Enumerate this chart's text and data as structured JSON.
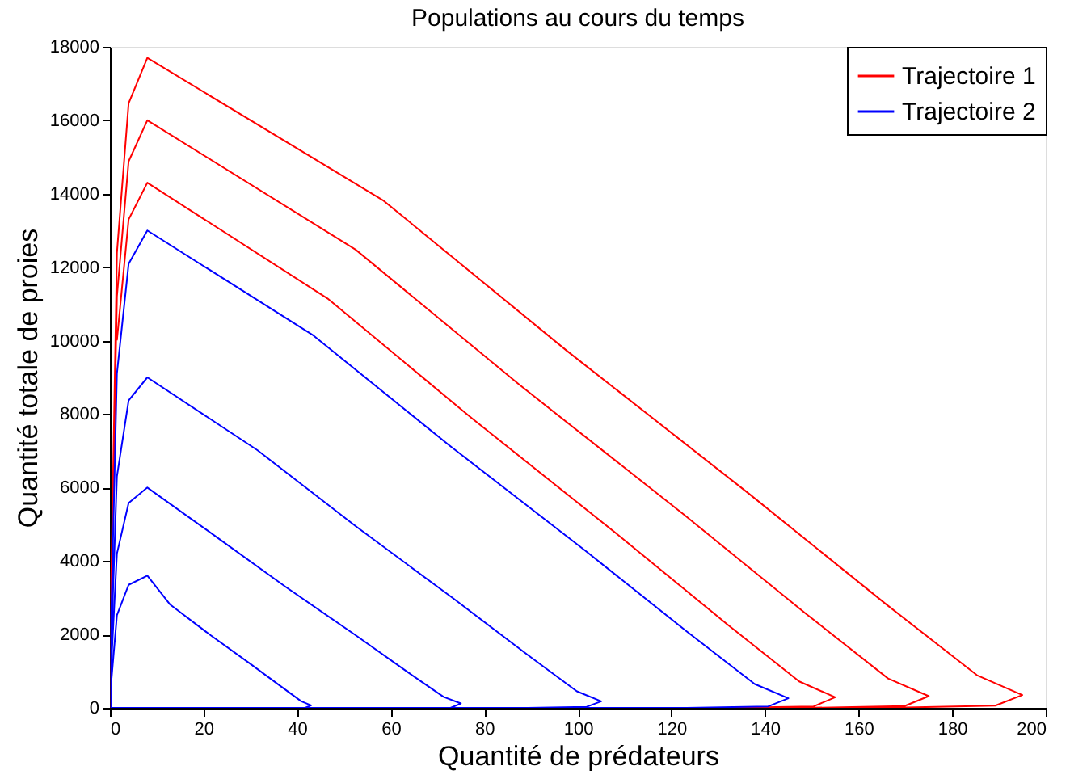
{
  "chart_data": {
    "type": "line",
    "title": "Populations au cours du temps",
    "xlabel": "Quantité de prédateurs",
    "ylabel": "Quantité totale de proies",
    "xlim": [
      0,
      200
    ],
    "xticks": [
      0,
      20,
      40,
      60,
      80,
      100,
      120,
      140,
      160,
      180,
      200
    ],
    "ylim": [
      0,
      18000
    ],
    "yticks": [
      0,
      2000,
      4000,
      6000,
      8000,
      10000,
      12000,
      14000,
      16000,
      18000
    ],
    "grid": false,
    "legend": "top right",
    "marker": "none",
    "line_style": "solid",
    "series": [
      {
        "name": "Trajectoire 1",
        "color": "#ff0000",
        "x": [
          1.5,
          4,
          8,
          46.5,
          77.5,
          108.5,
          131.8,
          147.3,
          155,
          150.4,
          131.8,
          77.5,
          23.3,
          0.3,
          0.3,
          1.5,
          4,
          8,
          52.5,
          87.5,
          122.5,
          148.8,
          166.3,
          175,
          169.8,
          148.8,
          87.5,
          26.3,
          0.3,
          0.3,
          1.5,
          4,
          8,
          58.5,
          97.5,
          136.5,
          165.8,
          185.3,
          195,
          189.2,
          165.8,
          97.5
        ],
        "values": [
          10010,
          13300,
          14300,
          11150,
          7870,
          4720,
          2290,
          720,
          290,
          40,
          0,
          0,
          0,
          0,
          3200,
          11200,
          14880,
          16000,
          12480,
          8800,
          5280,
          2560,
          800,
          320,
          50,
          0,
          0,
          0,
          0,
          3540,
          12390,
          16460,
          17700,
          13810,
          9740,
          5840,
          2830,
          890,
          350,
          60,
          0,
          0
        ]
      },
      {
        "name": "Trajectoire 2",
        "color": "#0000ff",
        "x": [
          0.3,
          1.5,
          4,
          8,
          12.9,
          21.5,
          30.1,
          36.6,
          40.9,
          43,
          41.7,
          36.6,
          21.5,
          6.5,
          0.3,
          0.3,
          1.5,
          4,
          8,
          22.5,
          37.5,
          52.5,
          63.8,
          71.3,
          75,
          72.8,
          63.8,
          37.5,
          11.3,
          0.3,
          0.3,
          1.5,
          4,
          8,
          31.5,
          52.5,
          73.5,
          89.3,
          99.8,
          105,
          101.9,
          89.3,
          52.5,
          15.8,
          0.3,
          0.3,
          1.5,
          4,
          8,
          43.5,
          72.5,
          101.5,
          123.3,
          137.8,
          145,
          140.7,
          123.3,
          72.5,
          21.8,
          0.3
        ],
        "values": [
          720,
          2520,
          3350,
          3600,
          2810,
          1980,
          1190,
          580,
          180,
          70,
          0,
          0,
          0,
          0,
          0,
          1200,
          4200,
          5580,
          6000,
          4680,
          3300,
          1980,
          960,
          300,
          120,
          0,
          0,
          0,
          0,
          0,
          1800,
          6300,
          8370,
          9000,
          7020,
          4950,
          2970,
          1440,
          450,
          180,
          30,
          0,
          0,
          0,
          0,
          2600,
          9100,
          12090,
          13000,
          10140,
          7150,
          4290,
          2080,
          650,
          260,
          40,
          0,
          0,
          0,
          0
        ]
      }
    ]
  }
}
